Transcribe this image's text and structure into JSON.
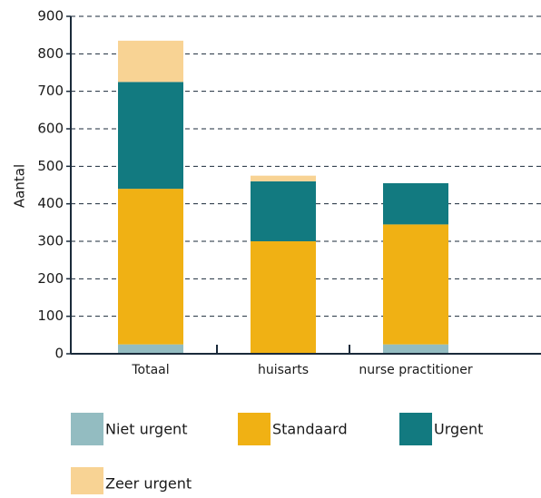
{
  "chart_data": {
    "type": "stacked_bar",
    "categories": [
      "Totaal",
      "huisarts",
      "nurse practitioner"
    ],
    "series": [
      {
        "name": "Niet urgent",
        "color": "#93bcc1",
        "values": [
          25,
          0,
          25
        ]
      },
      {
        "name": "Standaard",
        "color": "#f0b114",
        "values": [
          415,
          300,
          320
        ]
      },
      {
        "name": "Urgent",
        "color": "#127a80",
        "values": [
          285,
          160,
          110
        ]
      },
      {
        "name": "Zeer urgent",
        "color": "#f8d394",
        "values": [
          110,
          15,
          0
        ]
      }
    ],
    "y_label": "Aantal",
    "ylim": [
      0,
      900
    ],
    "yticks": [
      0,
      100,
      200,
      300,
      400,
      500,
      600,
      700,
      800,
      900
    ],
    "grid": true
  }
}
